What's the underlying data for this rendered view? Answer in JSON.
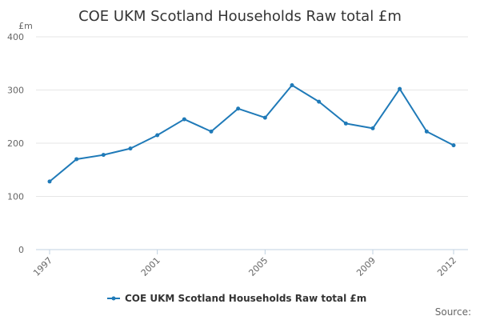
{
  "chart_data": {
    "type": "line",
    "title": "COE UKM Scotland Households Raw total £m",
    "ylabel": "£m",
    "xlabel": "",
    "ylim": [
      0,
      400
    ],
    "yticks": [
      0,
      100,
      200,
      300,
      400
    ],
    "x": [
      1997,
      1998,
      1999,
      2000,
      2001,
      2002,
      2003,
      2004,
      2005,
      2006,
      2007,
      2008,
      2009,
      2010,
      2011,
      2012
    ],
    "xticks": [
      "1997",
      "2001",
      "2005",
      "2009",
      "2012"
    ],
    "series": [
      {
        "name": "COE UKM Scotland Households Raw total £m",
        "color": "#1f7ab8",
        "values": [
          128,
          170,
          178,
          190,
          215,
          245,
          222,
          265,
          248,
          309,
          278,
          237,
          228,
          302,
          222,
          196
        ]
      }
    ],
    "grid": true,
    "legend": "bottom-center"
  },
  "source_label": "Source:"
}
